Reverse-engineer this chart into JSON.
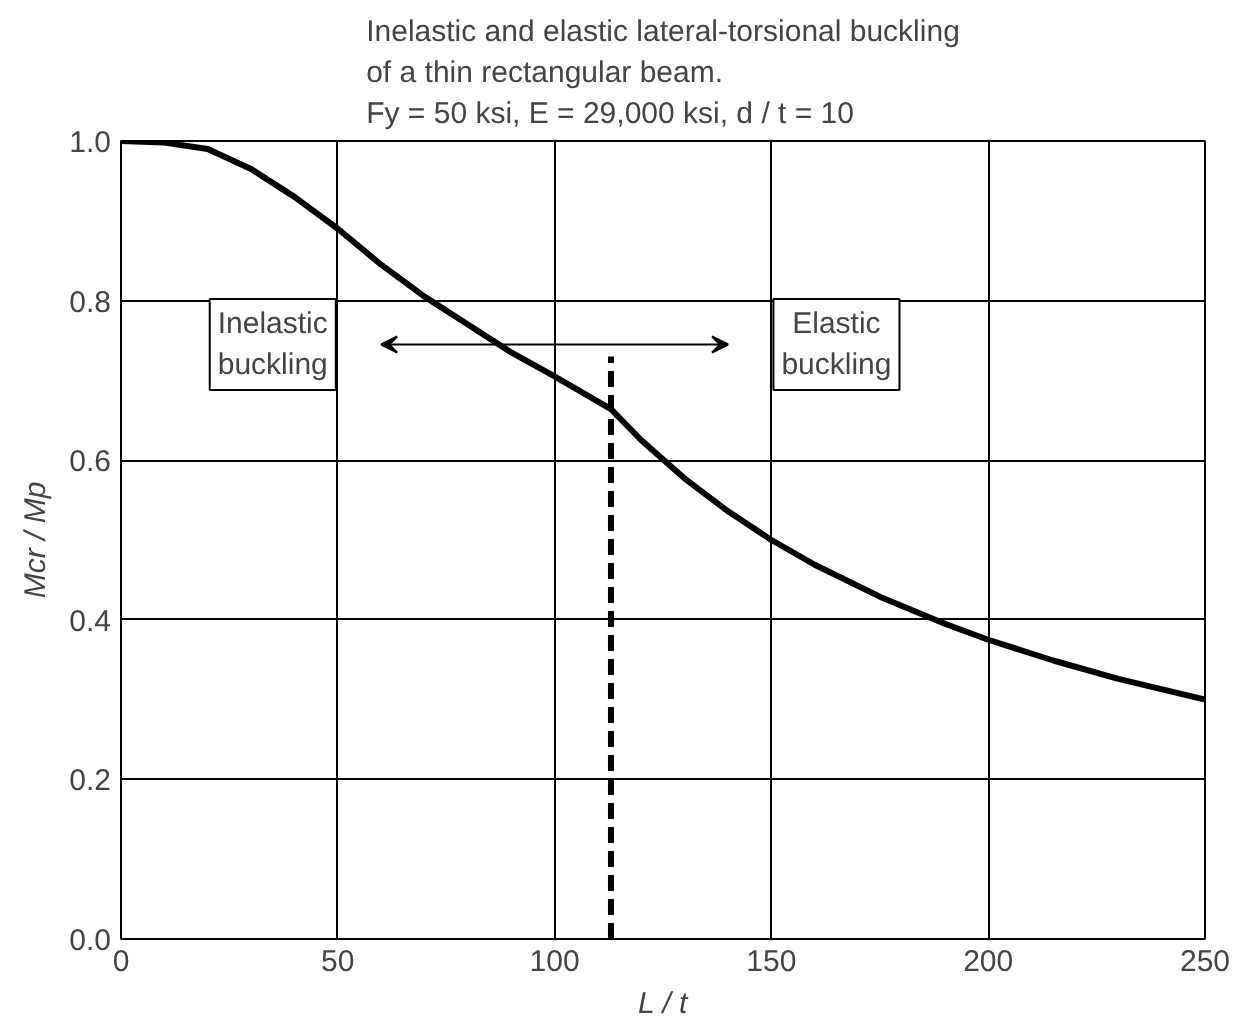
{
  "chart_data": {
    "type": "line",
    "title": "Inelastic and elastic lateral-torsional buckling\nof a thin rectangular beam.\nFy = 50 ksi, E = 29,000 ksi, d / t = 10",
    "xlabel": "L / t",
    "ylabel": "Mcr / Mp",
    "series": [
      {
        "color": "#000000",
        "line_style": "solid",
        "x": [
          0,
          10,
          20,
          30,
          40,
          50,
          60,
          70,
          80,
          90,
          100,
          113,
          120,
          130,
          140,
          150,
          160,
          175,
          190,
          200,
          215,
          230,
          250
        ],
        "values": [
          1.0,
          0.998,
          0.99,
          0.965,
          0.93,
          0.89,
          0.845,
          0.805,
          0.77,
          0.735,
          0.705,
          0.664,
          0.625,
          0.577,
          0.536,
          0.5,
          0.469,
          0.429,
          0.395,
          0.375,
          0.349,
          0.326,
          0.3
        ]
      },
      {
        "color": "#000000",
        "line_style": "dashed",
        "x": [
          113,
          113
        ],
        "values": [
          0,
          0.73
        ]
      }
    ],
    "annotations": [
      "Inelastic\nbuckling",
      "Elastic\nbuckling"
    ],
    "xlim": [
      0,
      250
    ],
    "xticks": [
      0,
      50,
      100,
      150,
      200,
      250
    ],
    "ylim": [
      0,
      1.0
    ],
    "yticks": [
      {
        "value": 0,
        "label": "0.0"
      },
      0.2,
      0.4,
      0.6,
      0.8,
      {
        "value": 1.0,
        "label": "1.0"
      }
    ],
    "grid": true,
    "marker": "none"
  }
}
